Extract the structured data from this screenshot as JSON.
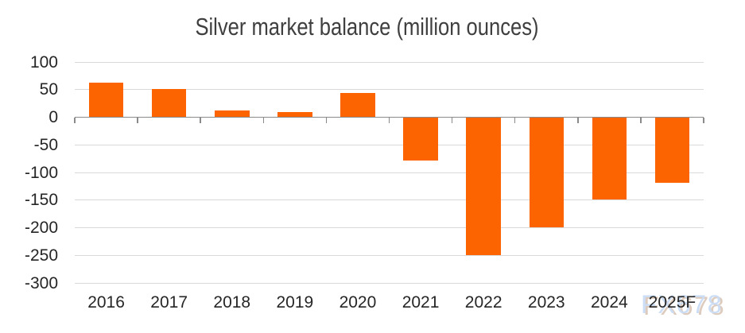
{
  "chart_data": {
    "type": "bar",
    "title": "Silver market balance (million ounces)",
    "categories": [
      "2016",
      "2017",
      "2018",
      "2019",
      "2020",
      "2021",
      "2022",
      "2023",
      "2024",
      "2025F"
    ],
    "values": [
      63,
      51,
      13,
      10,
      44,
      -78,
      -250,
      -199,
      -149,
      -118
    ],
    "xlabel": "",
    "ylabel": "",
    "ylim": [
      -300,
      100
    ],
    "yticks": [
      100,
      50,
      0,
      -50,
      -100,
      -150,
      -200,
      -250,
      -300
    ],
    "grid": true,
    "legend": false,
    "bar_color": "#fb6400",
    "gridline_color": "#d9d9d9",
    "axis_color": "#8a8a8a",
    "label_color": "#262626",
    "title_color": "#3f3f3f"
  },
  "watermark": {
    "text": "FX678",
    "color": "rgba(201,220,246,0.95)",
    "shadow_color": "rgba(193,162,137,0.55)"
  }
}
